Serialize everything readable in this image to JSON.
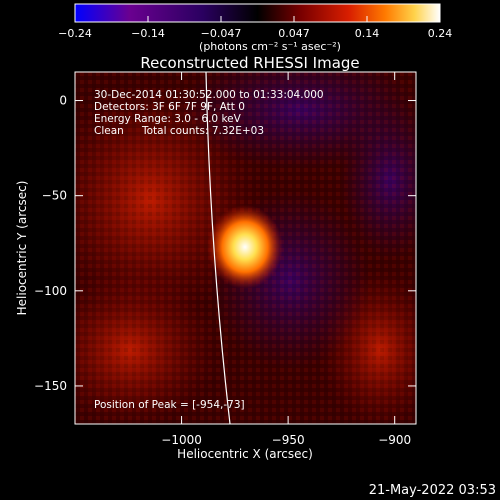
{
  "chart_data": {
    "type": "heatmap",
    "title": "Reconstructed RHESSI Image",
    "xlabel": "Heliocentric X (arcsec)",
    "ylabel": "Heliocentric Y (arcsec)",
    "xlim": [
      -1050,
      -890
    ],
    "ylim": [
      -170,
      15
    ],
    "xticks": [
      -1000,
      -950,
      -900
    ],
    "yticks": [
      0,
      -50,
      -100,
      -150
    ],
    "colorbar": {
      "min": -0.24,
      "max": 0.24,
      "ticks": [
        "-0.24",
        "-0.14",
        "-0.047",
        "0.047",
        "0.14",
        "0.24"
      ],
      "unit_label": "(photons cm⁻² s⁻¹ asec⁻²)",
      "colors": [
        "#0000ff",
        "#6a0090",
        "#2a0060",
        "#000000",
        "#7a0000",
        "#d81e00",
        "#ff7a00",
        "#ffd24a",
        "#ffffff"
      ]
    },
    "peak": {
      "x": -954,
      "y": -73
    },
    "annotations": {
      "time": "30-Dec-2014 01:30:52.000 to 01:33:04.000",
      "detectors": "Detectors: 3F 6F 7F 9F, Att 0",
      "energy": "Energy Range: 3.0 - 6.0 keV",
      "algorithm": "Clean",
      "total_counts": "Total counts: 7.32E+03",
      "peak_label": "Position of Peak = [-954,-73]"
    }
  },
  "footer_date": "21-May-2022 03:53"
}
